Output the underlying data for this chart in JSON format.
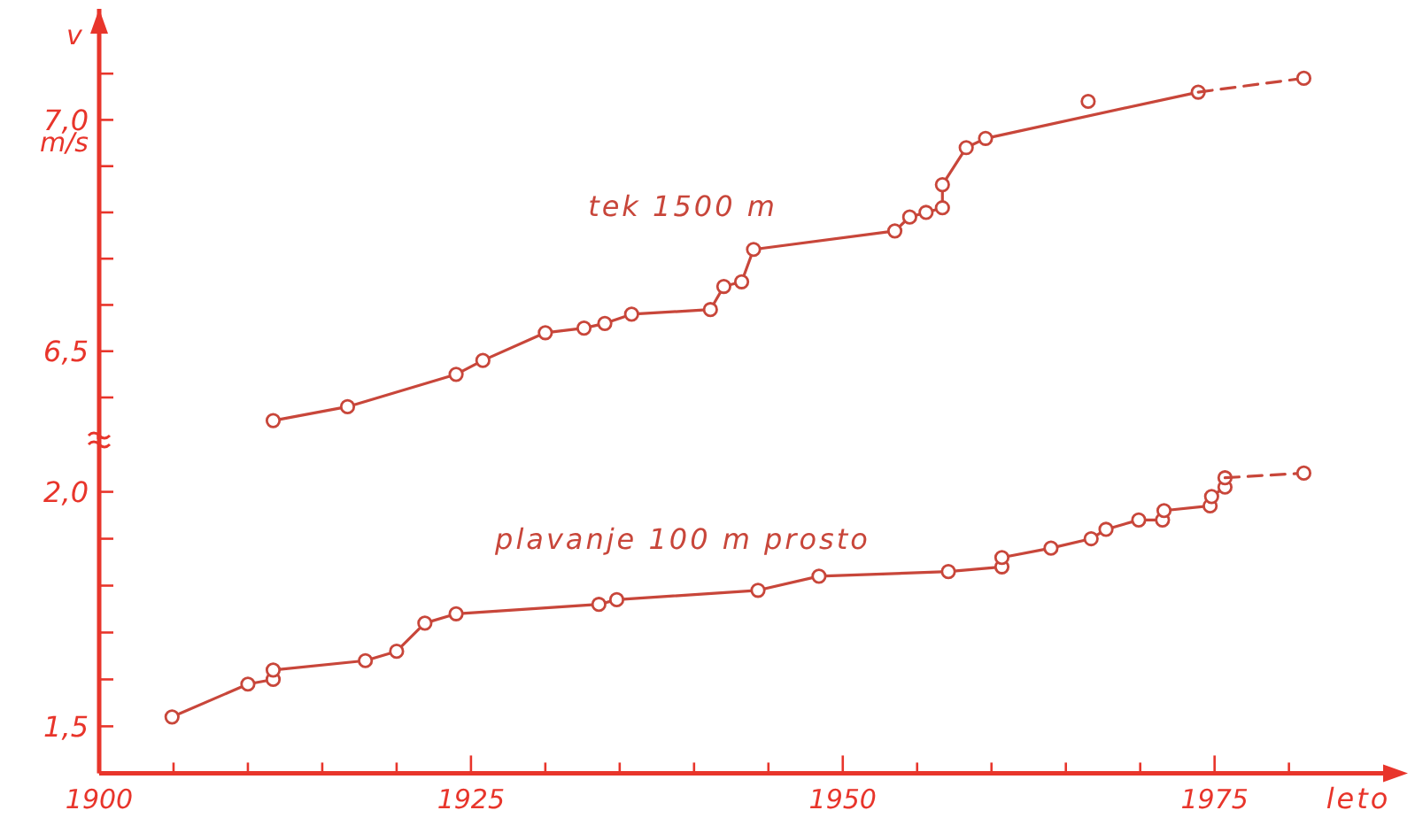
{
  "chart_data": [
    {
      "type": "line",
      "ylabel": "v",
      "annotations": [
        "m/s"
      ],
      "xlim": [
        1900,
        1988
      ],
      "ylim": [
        6.31,
        7.24
      ],
      "tick_labels": "y",
      "marker": "circle",
      "yticks": [
        {
          "value": 6.4,
          "label": null
        },
        {
          "value": 6.5,
          "label": "6,5"
        },
        {
          "value": 6.6,
          "label": null
        },
        {
          "value": 6.7,
          "label": null
        },
        {
          "value": 6.8,
          "label": null
        },
        {
          "value": 6.9,
          "label": null
        },
        {
          "value": 7.0,
          "label": "7,0"
        },
        {
          "value": 7.1,
          "label": null
        }
      ],
      "series": [
        {
          "name": "tek 1500 m",
          "color": "#c8463a",
          "line_style": "solid",
          "x": [
            1911.7,
            1916.7,
            1924.0,
            1925.8,
            1930.0,
            1932.6,
            1934.0,
            1935.8,
            1941.1,
            1942.0,
            1943.2,
            1944.0,
            1953.5,
            1954.5,
            1955.6,
            1956.7,
            1956.7,
            1958.3,
            1959.6,
            1973.9
          ],
          "values": [
            6.35,
            6.38,
            6.45,
            6.48,
            6.54,
            6.55,
            6.56,
            6.58,
            6.59,
            6.64,
            6.65,
            6.72,
            6.76,
            6.79,
            6.8,
            6.81,
            6.86,
            6.94,
            6.96,
            7.06
          ]
        },
        {
          "type": "scatter",
          "color": "#c8463a",
          "x": [
            1966.5
          ],
          "values": [
            7.04
          ]
        },
        {
          "type": "line",
          "color": "#c8463a",
          "line_style": "dashed",
          "x": [
            1973.9,
            1981.0
          ],
          "values": [
            7.06,
            7.09
          ]
        }
      ]
    },
    {
      "type": "line",
      "xlabel": "leto",
      "xlim": [
        1900,
        1988
      ],
      "ylim": [
        1.4,
        2.12
      ],
      "marker": "circle",
      "xticks": [
        {
          "value": 1900,
          "label": "1900"
        },
        {
          "value": 1905,
          "label": null
        },
        {
          "value": 1910,
          "label": null
        },
        {
          "value": 1915,
          "label": null
        },
        {
          "value": 1920,
          "label": null
        },
        {
          "value": 1925,
          "label": "1925"
        },
        {
          "value": 1930,
          "label": null
        },
        {
          "value": 1935,
          "label": null
        },
        {
          "value": 1940,
          "label": null
        },
        {
          "value": 1945,
          "label": null
        },
        {
          "value": 1950,
          "label": "1950"
        },
        {
          "value": 1955,
          "label": null
        },
        {
          "value": 1960,
          "label": null
        },
        {
          "value": 1965,
          "label": null
        },
        {
          "value": 1970,
          "label": null
        },
        {
          "value": 1975,
          "label": "1975"
        },
        {
          "value": 1980,
          "label": null
        }
      ],
      "yticks": [
        {
          "value": 1.5,
          "label": "1,5"
        },
        {
          "value": 1.6,
          "label": null
        },
        {
          "value": 1.7,
          "label": null
        },
        {
          "value": 1.8,
          "label": null
        },
        {
          "value": 1.9,
          "label": null
        },
        {
          "value": 2.0,
          "label": "2,0"
        }
      ],
      "series": [
        {
          "name": "plavanje 100 m prosto",
          "color": "#c8463a",
          "line_style": "solid",
          "x": [
            1904.9,
            1910.0,
            1911.7,
            1911.7,
            1917.9,
            1920.0,
            1921.9,
            1924.0,
            1933.6,
            1934.8,
            1944.3,
            1948.4,
            1957.1,
            1960.7,
            1960.7,
            1964.0,
            1966.7,
            1967.7,
            1969.9,
            1971.5,
            1971.6,
            1974.7,
            1974.8,
            1975.7,
            1975.7
          ],
          "values": [
            1.52,
            1.59,
            1.6,
            1.62,
            1.64,
            1.66,
            1.72,
            1.74,
            1.76,
            1.77,
            1.79,
            1.82,
            1.83,
            1.84,
            1.86,
            1.88,
            1.9,
            1.92,
            1.94,
            1.94,
            1.96,
            1.97,
            1.99,
            2.01,
            2.03
          ]
        },
        {
          "type": "line",
          "color": "#c8463a",
          "line_style": "dashed",
          "x": [
            1975.7,
            1981.0
          ],
          "values": [
            2.03,
            2.04
          ]
        }
      ]
    }
  ]
}
